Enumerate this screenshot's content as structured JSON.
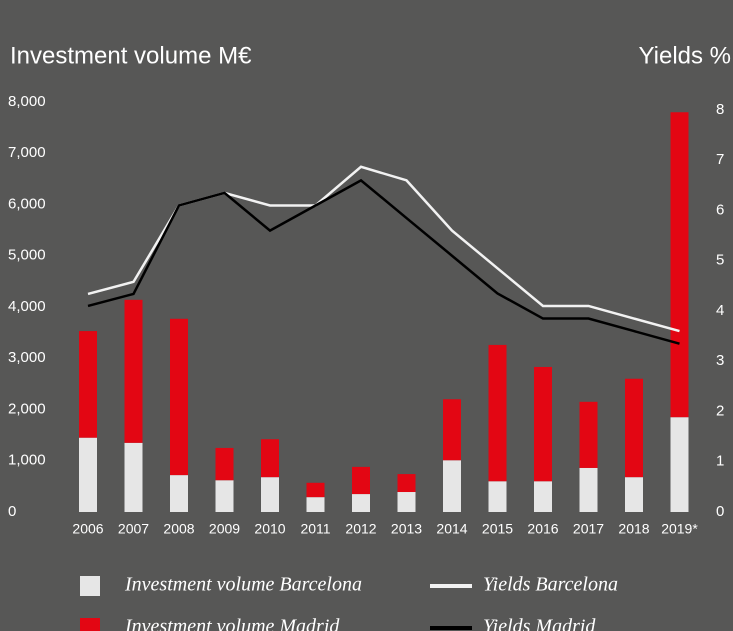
{
  "chart_data": {
    "type": "bar-line",
    "y_axis_title": "Investment volume M€",
    "y2_axis_title": "Yields %",
    "categories": [
      "2006",
      "2007",
      "2008",
      "2009",
      "2010",
      "2011",
      "2012",
      "2013",
      "2014",
      "2015",
      "2016",
      "2017",
      "2018",
      "2019*"
    ],
    "series": [
      {
        "name": "Investment volume Barcelona",
        "type": "bar",
        "color": "#e6e6e6",
        "values": [
          1450,
          1350,
          720,
          620,
          680,
          290,
          350,
          390,
          1010,
          600,
          600,
          860,
          680,
          1850
        ]
      },
      {
        "name": "Investment volume Madrid",
        "type": "bar",
        "color": "#e30613",
        "values": [
          2080,
          2790,
          3050,
          630,
          740,
          280,
          530,
          350,
          1190,
          2660,
          2230,
          1290,
          1920,
          5950
        ]
      },
      {
        "name": "Yields Barcelona",
        "type": "line",
        "axis": "y2",
        "color": "#f2f2f2",
        "values": [
          4.34,
          4.58,
          6.1,
          6.35,
          6.1,
          6.1,
          6.87,
          6.6,
          5.6,
          4.85,
          4.1,
          4.1,
          3.85,
          3.6
        ]
      },
      {
        "name": "Yields Madrid",
        "type": "line",
        "axis": "y2",
        "color": "#000000",
        "values": [
          4.1,
          4.34,
          6.1,
          6.35,
          5.6,
          6.1,
          6.6,
          5.85,
          5.1,
          4.35,
          3.85,
          3.85,
          3.6,
          3.35
        ]
      }
    ],
    "stacked": true,
    "ylim": [
      0,
      8000
    ],
    "yticks": [
      0,
      {
        "value": 1000,
        "label": "1,000"
      },
      {
        "value": 2000,
        "label": "2,000"
      },
      {
        "value": 3000,
        "label": "3,000"
      },
      {
        "value": 4000,
        "label": "4,000"
      },
      {
        "value": 5000,
        "label": "5,000"
      },
      {
        "value": 6000,
        "label": "6,000"
      },
      {
        "value": 7000,
        "label": "7,000"
      },
      {
        "value": 8000,
        "label": "8,000"
      }
    ],
    "y2lim": [
      0,
      8
    ],
    "y2ticks": [
      0,
      1,
      2,
      3,
      4,
      5,
      6,
      7,
      8
    ],
    "legend": "bottom"
  }
}
